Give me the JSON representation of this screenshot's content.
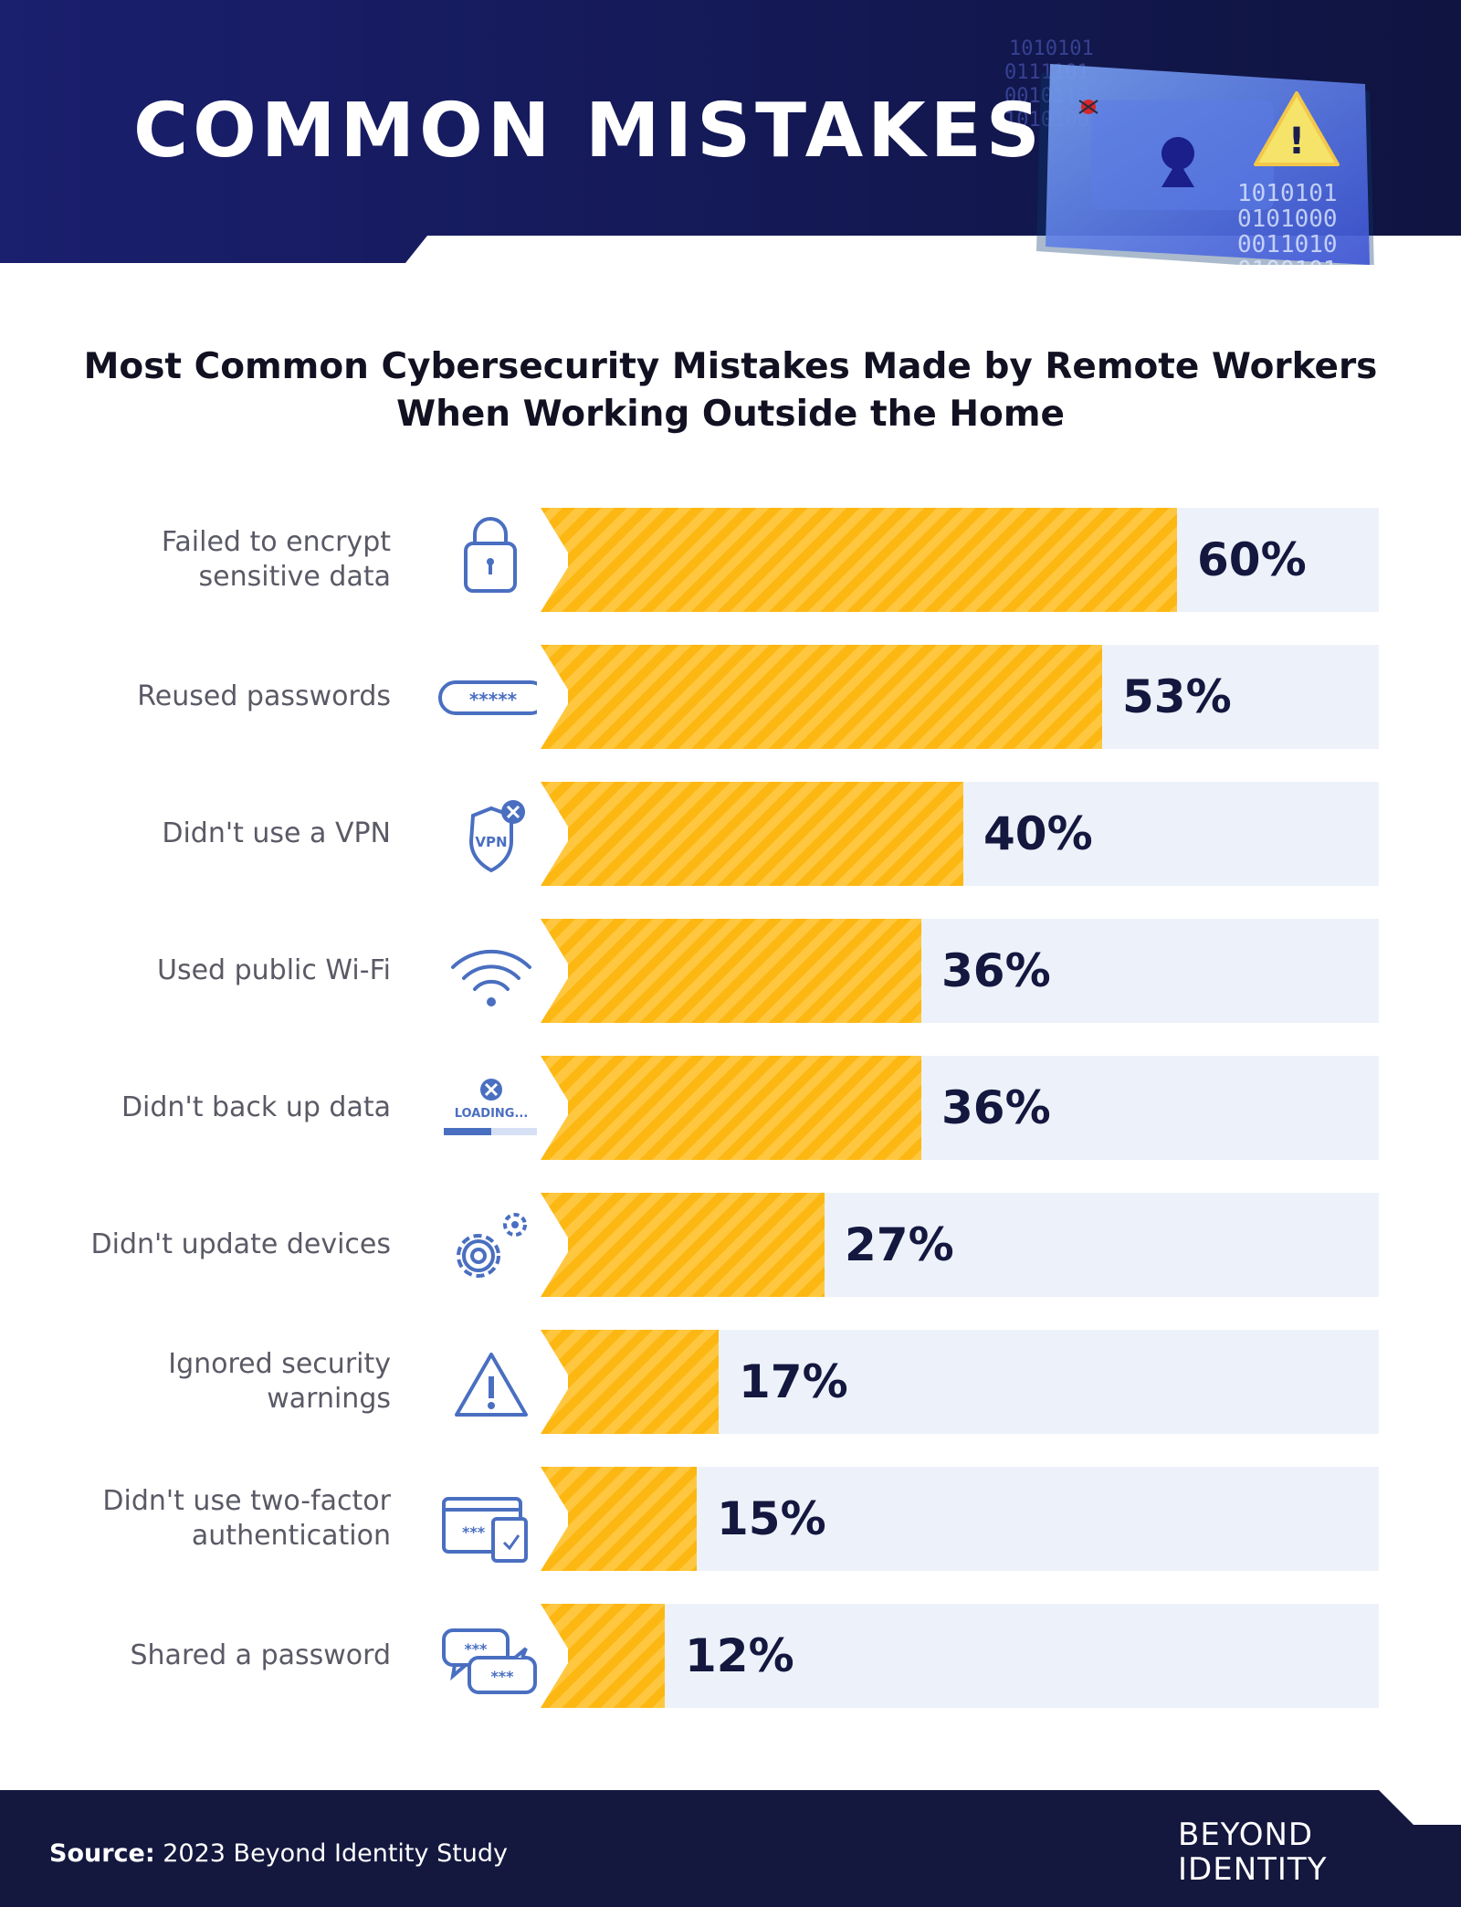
{
  "header": {
    "title": "COMMON MISTAKES"
  },
  "subtitle": {
    "line1": "Most Common Cybersecurity Mistakes Made by Remote Workers",
    "line2": "When Working Outside the Home"
  },
  "colors": {
    "navy": "#14183f",
    "bar": "#fcb712",
    "track": "#edf2fa",
    "icon": "#4a6fc1"
  },
  "chart_data": {
    "type": "bar",
    "orientation": "horizontal",
    "title": "Most Common Cybersecurity Mistakes Made by Remote Workers When Working Outside the Home",
    "xlabel": "",
    "ylabel": "",
    "xlim": [
      0,
      100
    ],
    "unit": "%",
    "categories": [
      "Failed to encrypt\nsensitive data",
      "Reused passwords",
      "Didn't use a VPN",
      "Used public Wi-Fi",
      "Didn't back up data",
      "Didn't update devices",
      "Ignored security\nwarnings",
      "Didn't use two-factor\nauthentication",
      "Shared a password"
    ],
    "values": [
      60,
      53,
      40,
      36,
      36,
      27,
      17,
      15,
      12
    ],
    "value_labels": [
      "60%",
      "53%",
      "40%",
      "36%",
      "36%",
      "27%",
      "17%",
      "15%",
      "12%"
    ],
    "icons": [
      "lock-icon",
      "password-field-icon",
      "vpn-shield-icon",
      "wifi-icon",
      "loading-error-icon",
      "gears-icon",
      "warning-icon",
      "two-factor-devices-icon",
      "chat-password-icon"
    ],
    "icon_texts": {
      "password": "*****",
      "vpn": "VPN",
      "loading": "LOADING...",
      "stars": "***"
    },
    "grid": false,
    "legend": "none"
  },
  "footer": {
    "source_label": "Source:",
    "source_text": "2023 Beyond Identity Study",
    "logo_line1": "BEYOND",
    "logo_line2": "IDENTITY"
  }
}
